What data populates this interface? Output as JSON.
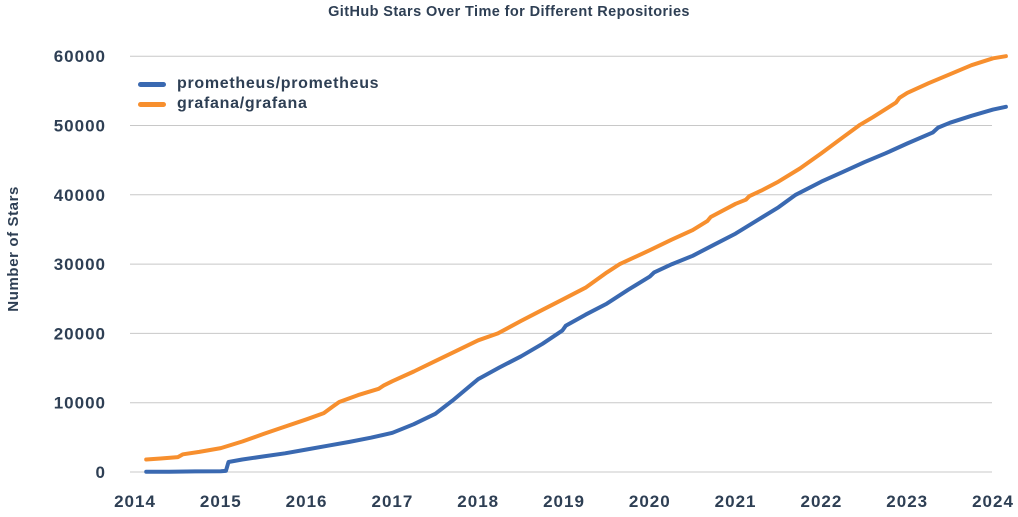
{
  "colors": {
    "text": "#2e3f54",
    "grid": "#c8c8c8",
    "background": "#ffffff",
    "prometheus_blue": "#3a69b1",
    "grafana_orange": "#f78f2e"
  },
  "chart_data": {
    "type": "line",
    "title": "GitHub Stars Over Time for Different Repositories",
    "xlabel": "",
    "ylabel": "Number of Stars",
    "x_ticks": [
      2014,
      2015,
      2016,
      2017,
      2018,
      2019,
      2020,
      2021,
      2022,
      2023,
      2024
    ],
    "y_ticks": [
      0,
      10000,
      20000,
      30000,
      40000,
      50000,
      60000
    ],
    "xlim": [
      2013.94,
      2024.3
    ],
    "ylim": [
      0,
      60000
    ],
    "grid": "horizontal-only",
    "legend_position": "inside-top-left",
    "series": [
      {
        "name": "prometheus/prometheus",
        "color": "#3a69b1",
        "points": [
          [
            2014.13,
            30
          ],
          [
            2014.4,
            50
          ],
          [
            2014.7,
            80
          ],
          [
            2015.0,
            120
          ],
          [
            2015.06,
            160
          ],
          [
            2015.09,
            1450
          ],
          [
            2015.25,
            1800
          ],
          [
            2015.5,
            2250
          ],
          [
            2015.75,
            2700
          ],
          [
            2016.0,
            3250
          ],
          [
            2016.25,
            3800
          ],
          [
            2016.5,
            4350
          ],
          [
            2016.75,
            4950
          ],
          [
            2017.0,
            5650
          ],
          [
            2017.25,
            6900
          ],
          [
            2017.5,
            8400
          ],
          [
            2017.7,
            10300
          ],
          [
            2018.0,
            13400
          ],
          [
            2018.25,
            15100
          ],
          [
            2018.5,
            16700
          ],
          [
            2018.75,
            18500
          ],
          [
            2018.98,
            20400
          ],
          [
            2019.02,
            21100
          ],
          [
            2019.25,
            22700
          ],
          [
            2019.5,
            24300
          ],
          [
            2019.75,
            26300
          ],
          [
            2020.0,
            28200
          ],
          [
            2020.05,
            28800
          ],
          [
            2020.26,
            30000
          ],
          [
            2020.5,
            31200
          ],
          [
            2020.75,
            32800
          ],
          [
            2021.0,
            34400
          ],
          [
            2021.25,
            36300
          ],
          [
            2021.5,
            38200
          ],
          [
            2021.7,
            40000
          ],
          [
            2022.0,
            41900
          ],
          [
            2022.25,
            43300
          ],
          [
            2022.5,
            44700
          ],
          [
            2022.75,
            46000
          ],
          [
            2023.0,
            47400
          ],
          [
            2023.3,
            49000
          ],
          [
            2023.36,
            49700
          ],
          [
            2023.5,
            50400
          ],
          [
            2023.75,
            51400
          ],
          [
            2024.0,
            52300
          ],
          [
            2024.15,
            52700
          ]
        ]
      },
      {
        "name": "grafana/grafana",
        "color": "#f78f2e",
        "points": [
          [
            2014.13,
            1800
          ],
          [
            2014.3,
            1950
          ],
          [
            2014.5,
            2150
          ],
          [
            2014.56,
            2550
          ],
          [
            2014.75,
            2900
          ],
          [
            2015.0,
            3450
          ],
          [
            2015.25,
            4400
          ],
          [
            2015.5,
            5500
          ],
          [
            2015.7,
            6350
          ],
          [
            2016.0,
            7600
          ],
          [
            2016.2,
            8500
          ],
          [
            2016.3,
            9400
          ],
          [
            2016.38,
            10100
          ],
          [
            2016.6,
            11100
          ],
          [
            2016.84,
            12000
          ],
          [
            2016.9,
            12500
          ],
          [
            2017.0,
            13100
          ],
          [
            2017.25,
            14500
          ],
          [
            2017.5,
            16000
          ],
          [
            2017.75,
            17500
          ],
          [
            2018.0,
            19000
          ],
          [
            2018.23,
            20000
          ],
          [
            2018.5,
            21800
          ],
          [
            2018.75,
            23400
          ],
          [
            2019.0,
            25000
          ],
          [
            2019.25,
            26600
          ],
          [
            2019.5,
            28800
          ],
          [
            2019.65,
            30000
          ],
          [
            2020.0,
            32000
          ],
          [
            2020.25,
            33500
          ],
          [
            2020.5,
            34900
          ],
          [
            2020.67,
            36200
          ],
          [
            2020.71,
            36800
          ],
          [
            2021.0,
            38700
          ],
          [
            2021.12,
            39300
          ],
          [
            2021.16,
            39800
          ],
          [
            2021.3,
            40600
          ],
          [
            2021.5,
            41900
          ],
          [
            2021.75,
            43800
          ],
          [
            2022.0,
            46000
          ],
          [
            2022.25,
            48300
          ],
          [
            2022.45,
            50100
          ],
          [
            2022.6,
            51200
          ],
          [
            2022.87,
            53300
          ],
          [
            2022.91,
            54000
          ],
          [
            2023.0,
            54700
          ],
          [
            2023.25,
            56100
          ],
          [
            2023.5,
            57400
          ],
          [
            2023.75,
            58700
          ],
          [
            2024.0,
            59700
          ],
          [
            2024.15,
            60000
          ]
        ]
      }
    ]
  }
}
